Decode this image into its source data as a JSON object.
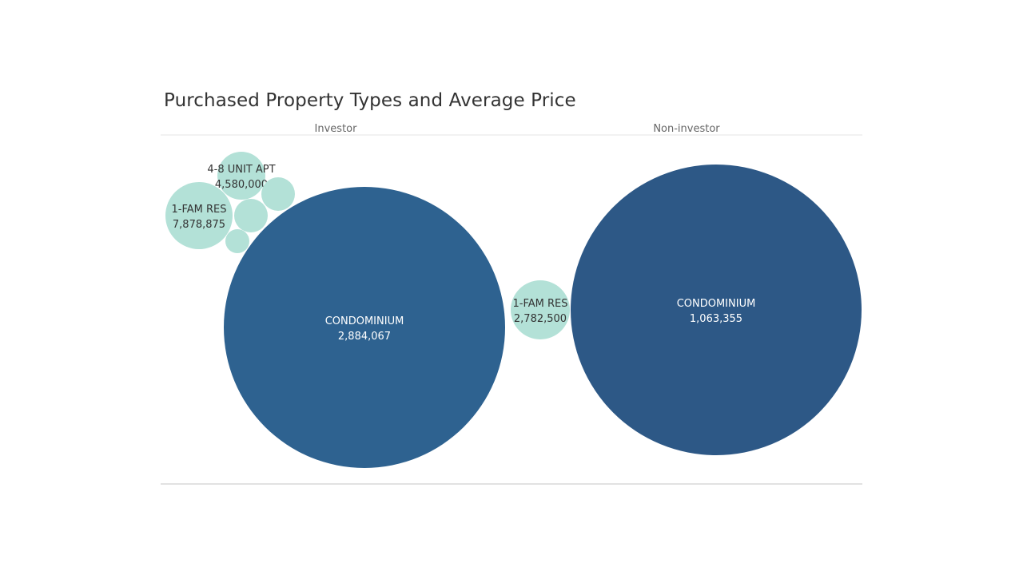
{
  "chart_data": {
    "type": "bubble",
    "title": "Purchased Property Types and Average Price",
    "panels": [
      {
        "name": "Investor",
        "bubbles": [
          {
            "category": "CONDOMINIUM",
            "value": "2,884,067",
            "color": "#2e6290",
            "label_color": "#ffffff"
          },
          {
            "category": "1-FAM RES",
            "value": "7,878,875",
            "color": "#b3e1d7",
            "label_color": "#333333"
          },
          {
            "category": "4-8 UNIT APT",
            "value": "4,580,000",
            "color": "#b3e1d7",
            "label_color": "#333333"
          },
          {
            "category": "",
            "value": "",
            "color": "#b3e1d7",
            "label_color": "#333333"
          },
          {
            "category": "",
            "value": "",
            "color": "#b3e1d7",
            "label_color": "#333333"
          },
          {
            "category": "",
            "value": "",
            "color": "#b3e1d7",
            "label_color": "#333333"
          }
        ]
      },
      {
        "name": "Non-investor",
        "bubbles": [
          {
            "category": "CONDOMINIUM",
            "value": "1,063,355",
            "color": "#2d5886",
            "label_color": "#ffffff"
          },
          {
            "category": "1-FAM RES",
            "value": "2,782,500",
            "color": "#b3e1d7",
            "label_color": "#333333"
          }
        ]
      }
    ],
    "colors": {
      "large": "#2e6290",
      "small": "#b3e1d7"
    }
  }
}
